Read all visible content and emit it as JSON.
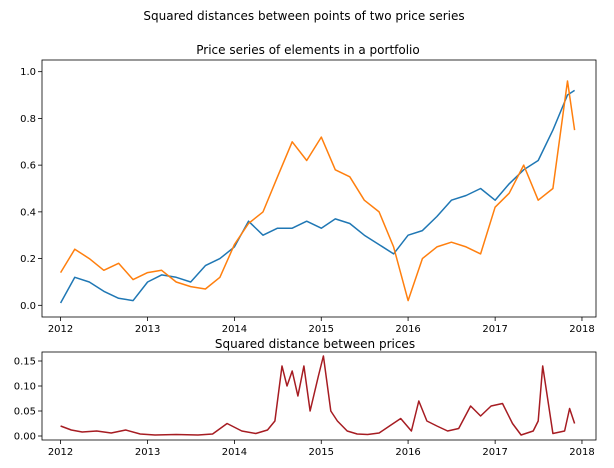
{
  "figure": {
    "title": "Squared distances between points of two price series"
  },
  "chart_data": [
    {
      "type": "line",
      "title": "Price series of elements in a portfolio",
      "xlabel": "",
      "ylabel": "",
      "xlim": [
        "2011-10-15",
        "2018-03-01"
      ],
      "ylim": [
        -0.05,
        1.05
      ],
      "x_ticks": [
        "2012",
        "2013",
        "2014",
        "2015",
        "2016",
        "2017",
        "2018"
      ],
      "y_ticks": [
        "0.0",
        "0.2",
        "0.4",
        "0.6",
        "0.8",
        "1.0"
      ],
      "grid": false,
      "legend": "none",
      "x": [
        "2012-01-01",
        "2012-03-01",
        "2012-05-01",
        "2012-07-01",
        "2012-09-01",
        "2012-11-01",
        "2013-01-01",
        "2013-03-01",
        "2013-05-01",
        "2013-07-01",
        "2013-09-01",
        "2013-11-01",
        "2014-01-01",
        "2014-03-01",
        "2014-05-01",
        "2014-07-01",
        "2014-09-01",
        "2014-11-01",
        "2015-01-01",
        "2015-03-01",
        "2015-05-01",
        "2015-07-01",
        "2015-09-01",
        "2015-11-01",
        "2016-01-01",
        "2016-03-01",
        "2016-05-01",
        "2016-07-01",
        "2016-09-01",
        "2016-11-01",
        "2017-01-01",
        "2017-03-01",
        "2017-05-01",
        "2017-07-01",
        "2017-09-01",
        "2017-11-01",
        "2017-12-01"
      ],
      "series": [
        {
          "color": "#1f77b4",
          "values": [
            0.01,
            0.12,
            0.1,
            0.06,
            0.03,
            0.02,
            0.1,
            0.13,
            0.12,
            0.1,
            0.17,
            0.2,
            0.25,
            0.36,
            0.3,
            0.33,
            0.33,
            0.36,
            0.33,
            0.37,
            0.35,
            0.3,
            0.26,
            0.22,
            0.3,
            0.32,
            0.38,
            0.45,
            0.47,
            0.5,
            0.45,
            0.52,
            0.58,
            0.62,
            0.75,
            0.9,
            0.92
          ]
        },
        {
          "color": "#ff7f0e",
          "values": [
            0.14,
            0.24,
            0.2,
            0.15,
            0.18,
            0.11,
            0.14,
            0.15,
            0.1,
            0.08,
            0.07,
            0.12,
            0.26,
            0.35,
            0.4,
            0.55,
            0.7,
            0.62,
            0.72,
            0.58,
            0.55,
            0.45,
            0.4,
            0.25,
            0.02,
            0.2,
            0.25,
            0.27,
            0.25,
            0.22,
            0.42,
            0.48,
            0.6,
            0.45,
            0.5,
            0.96,
            0.75
          ]
        }
      ]
    },
    {
      "type": "line",
      "title": "Squared distance between prices",
      "xlabel": "",
      "ylabel": "",
      "xlim": [
        "2011-10-15",
        "2018-03-01"
      ],
      "ylim": [
        -0.008,
        0.168
      ],
      "x_ticks": [
        "2012",
        "2013",
        "2014",
        "2015",
        "2016",
        "2017",
        "2018"
      ],
      "y_ticks": [
        "0.00",
        "0.05",
        "0.10",
        "0.15"
      ],
      "grid": false,
      "legend": "none",
      "x": [
        "2012-01-01",
        "2012-02-15",
        "2012-04-01",
        "2012-06-01",
        "2012-08-01",
        "2012-10-01",
        "2012-12-01",
        "2013-02-01",
        "2013-05-01",
        "2013-08-01",
        "2013-10-01",
        "2013-12-01",
        "2014-02-01",
        "2014-04-01",
        "2014-05-20",
        "2014-06-20",
        "2014-07-20",
        "2014-08-10",
        "2014-09-01",
        "2014-09-25",
        "2014-10-20",
        "2014-11-15",
        "2014-12-20",
        "2015-01-10",
        "2015-02-10",
        "2015-03-10",
        "2015-04-20",
        "2015-06-01",
        "2015-07-15",
        "2015-09-01",
        "2015-10-15",
        "2015-12-01",
        "2016-01-15",
        "2016-02-15",
        "2016-03-20",
        "2016-05-01",
        "2016-06-15",
        "2016-08-01",
        "2016-09-20",
        "2016-11-01",
        "2016-12-15",
        "2017-02-01",
        "2017-03-15",
        "2017-04-20",
        "2017-06-10",
        "2017-07-01",
        "2017-07-20",
        "2017-09-01",
        "2017-10-20",
        "2017-11-10",
        "2017-12-01"
      ],
      "series": [
        {
          "color": "#a61c22",
          "values": [
            0.02,
            0.012,
            0.008,
            0.01,
            0.006,
            0.012,
            0.004,
            0.002,
            0.003,
            0.002,
            0.004,
            0.025,
            0.01,
            0.005,
            0.012,
            0.03,
            0.14,
            0.1,
            0.13,
            0.08,
            0.14,
            0.05,
            0.12,
            0.16,
            0.05,
            0.03,
            0.01,
            0.004,
            0.003,
            0.006,
            0.02,
            0.035,
            0.01,
            0.07,
            0.03,
            0.02,
            0.01,
            0.015,
            0.06,
            0.04,
            0.06,
            0.065,
            0.025,
            0.002,
            0.01,
            0.03,
            0.14,
            0.005,
            0.01,
            0.055,
            0.025
          ]
        }
      ]
    }
  ]
}
